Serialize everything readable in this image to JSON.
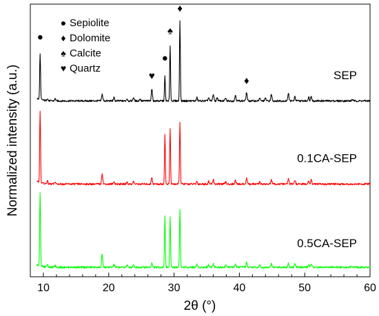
{
  "chart_data": {
    "type": "line",
    "title": "",
    "xlabel": "2θ (°)",
    "ylabel": "Normalized intensity (a.u.)",
    "xlim": [
      8,
      60
    ],
    "ylim": [
      0,
      1
    ],
    "xticks": [
      10,
      20,
      30,
      40,
      50,
      60
    ],
    "grid": false,
    "legend": {
      "placement": "top-left",
      "entries": [
        {
          "symbol": "●",
          "label": "Sepiolite"
        },
        {
          "symbol": "♦",
          "label": "Dolomite"
        },
        {
          "symbol": "♠",
          "label": "Calcite"
        },
        {
          "symbol": "♥",
          "label": "Quartz"
        }
      ]
    },
    "annotations": [
      {
        "symbol": "●",
        "x": 9.5,
        "y": 0.868
      },
      {
        "symbol": "♥",
        "x": 26.6,
        "y": 0.725
      },
      {
        "symbol": "●",
        "x": 28.6,
        "y": 0.79
      },
      {
        "symbol": "♠",
        "x": 29.4,
        "y": 0.89
      },
      {
        "symbol": "♦",
        "x": 30.9,
        "y": 0.972
      },
      {
        "symbol": "♦",
        "x": 41.1,
        "y": 0.707
      }
    ],
    "series": [
      {
        "name": "SEP",
        "color": "#000000",
        "baseline": 0.645,
        "label_x": 58,
        "label_y": 0.725,
        "peaks": [
          [
            9.5,
            0.17
          ],
          [
            10.6,
            0.01
          ],
          [
            11.8,
            0.008
          ],
          [
            19.0,
            0.025
          ],
          [
            20.8,
            0.012
          ],
          [
            22.8,
            0.008
          ],
          [
            23.8,
            0.013
          ],
          [
            24.8,
            0.008
          ],
          [
            26.6,
            0.045
          ],
          [
            28.6,
            0.09
          ],
          [
            29.4,
            0.2
          ],
          [
            30.9,
            0.292
          ],
          [
            33.5,
            0.012
          ],
          [
            35.3,
            0.012
          ],
          [
            36.0,
            0.025
          ],
          [
            36.6,
            0.012
          ],
          [
            37.9,
            0.01
          ],
          [
            39.4,
            0.022
          ],
          [
            41.1,
            0.032
          ],
          [
            43.1,
            0.01
          ],
          [
            44.0,
            0.01
          ],
          [
            44.9,
            0.025
          ],
          [
            47.5,
            0.03
          ],
          [
            48.5,
            0.015
          ],
          [
            50.6,
            0.015
          ],
          [
            51.0,
            0.02
          ],
          [
            57.3,
            0.006
          ]
        ]
      },
      {
        "name": "0.1CA-SEP",
        "color": "#ff0000",
        "baseline": 0.34,
        "label_x": 58,
        "label_y": 0.42,
        "peaks": [
          [
            9.5,
            0.265
          ],
          [
            10.6,
            0.012
          ],
          [
            11.8,
            0.008
          ],
          [
            19.0,
            0.04
          ],
          [
            20.8,
            0.01
          ],
          [
            22.8,
            0.008
          ],
          [
            23.8,
            0.01
          ],
          [
            26.6,
            0.025
          ],
          [
            28.6,
            0.18
          ],
          [
            29.4,
            0.2
          ],
          [
            30.9,
            0.225
          ],
          [
            33.5,
            0.01
          ],
          [
            35.3,
            0.01
          ],
          [
            36.0,
            0.018
          ],
          [
            37.9,
            0.008
          ],
          [
            39.4,
            0.015
          ],
          [
            41.1,
            0.022
          ],
          [
            43.1,
            0.008
          ],
          [
            44.9,
            0.015
          ],
          [
            47.5,
            0.02
          ],
          [
            48.5,
            0.015
          ],
          [
            50.6,
            0.01
          ],
          [
            51.0,
            0.015
          ]
        ]
      },
      {
        "name": "0.5CA-SEP",
        "color": "#00ff00",
        "baseline": 0.035,
        "label_x": 58,
        "label_y": 0.108,
        "peaks": [
          [
            9.5,
            0.265
          ],
          [
            10.6,
            0.012
          ],
          [
            11.8,
            0.008
          ],
          [
            19.0,
            0.045
          ],
          [
            20.8,
            0.01
          ],
          [
            22.8,
            0.008
          ],
          [
            23.8,
            0.01
          ],
          [
            26.6,
            0.015
          ],
          [
            28.6,
            0.19
          ],
          [
            29.4,
            0.185
          ],
          [
            30.9,
            0.215
          ],
          [
            33.5,
            0.01
          ],
          [
            35.3,
            0.01
          ],
          [
            36.0,
            0.015
          ],
          [
            37.9,
            0.008
          ],
          [
            39.4,
            0.012
          ],
          [
            41.1,
            0.018
          ],
          [
            43.1,
            0.008
          ],
          [
            44.9,
            0.013
          ],
          [
            47.5,
            0.015
          ],
          [
            48.5,
            0.013
          ],
          [
            50.6,
            0.01
          ],
          [
            51.0,
            0.012
          ]
        ]
      }
    ]
  }
}
